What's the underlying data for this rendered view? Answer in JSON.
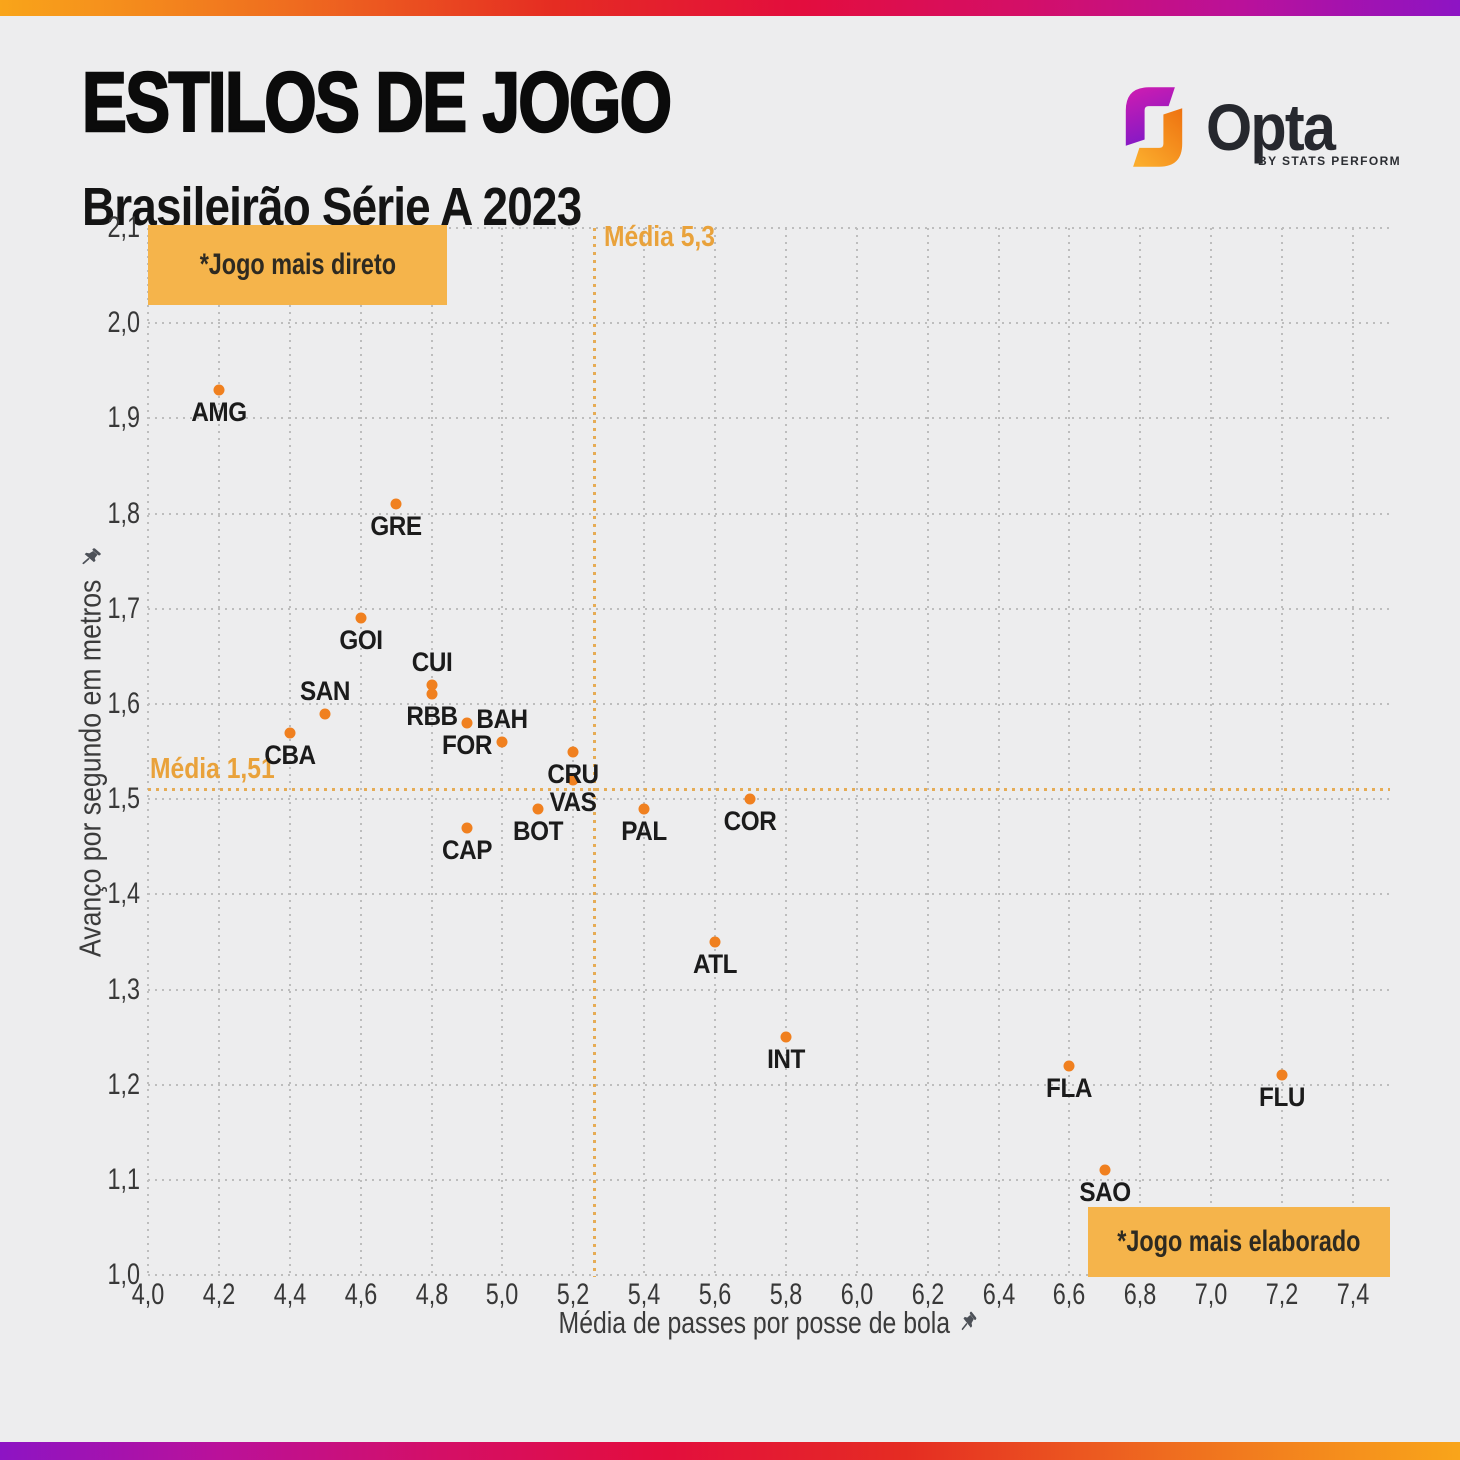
{
  "header": {
    "title": "ESTILOS DE JOGO",
    "subtitle": "Brasileirão Série A 2023"
  },
  "brand": {
    "name": "Opta",
    "byline": "BY STATS PERFORM"
  },
  "chart_data": {
    "type": "scatter",
    "title": "ESTILOS DE JOGO",
    "subtitle": "Brasileirão Série A 2023",
    "xlabel": "Média de passes por posse de bola",
    "ylabel": "Avanço por segundo em metros",
    "xlim": [
      4.0,
      7.5
    ],
    "ylim": [
      1.0,
      2.1
    ],
    "grid": true,
    "xticks": [
      "4,0",
      "4,2",
      "4,4",
      "4,6",
      "4,8",
      "5,0",
      "5,2",
      "5,4",
      "5,6",
      "5,8",
      "6,0",
      "6,2",
      "6,4",
      "6,6",
      "6,8",
      "7,0",
      "7,2",
      "7,4"
    ],
    "yticks": [
      "1,0",
      "1,1",
      "1,2",
      "1,3",
      "1,4",
      "1,5",
      "1,6",
      "1,7",
      "1,8",
      "1,9",
      "2,0",
      "2,1"
    ],
    "mean_x": {
      "label": "Média 5,3",
      "value": 5.26
    },
    "mean_y": {
      "label": "Média 1,51",
      "value": 1.51
    },
    "annotations": [
      {
        "text": "*Jogo mais direto",
        "corner": "top-left"
      },
      {
        "text": "*Jogo mais elaborado",
        "corner": "bottom-right"
      }
    ],
    "points": [
      {
        "label": "AMG",
        "x": 4.2,
        "y": 1.93,
        "label_pos": "below"
      },
      {
        "label": "GRE",
        "x": 4.7,
        "y": 1.81,
        "label_pos": "below"
      },
      {
        "label": "GOI",
        "x": 4.6,
        "y": 1.69,
        "label_pos": "below"
      },
      {
        "label": "CUI",
        "x": 4.8,
        "y": 1.62,
        "label_pos": "above"
      },
      {
        "label": "RBB",
        "x": 4.8,
        "y": 1.61,
        "label_pos": "below"
      },
      {
        "label": "SAN",
        "x": 4.5,
        "y": 1.59,
        "label_pos": "above"
      },
      {
        "label": "FOR",
        "x": 4.9,
        "y": 1.58,
        "label_pos": "below"
      },
      {
        "label": "CBA",
        "x": 4.4,
        "y": 1.57,
        "label_pos": "below"
      },
      {
        "label": "BAH",
        "x": 5.0,
        "y": 1.56,
        "label_pos": "above"
      },
      {
        "label": "CRU",
        "x": 5.2,
        "y": 1.55,
        "label_pos": "below"
      },
      {
        "label": "VAS",
        "x": 5.2,
        "y": 1.52,
        "label_pos": "below"
      },
      {
        "label": "COR",
        "x": 5.7,
        "y": 1.5,
        "label_pos": "below"
      },
      {
        "label": "BOT",
        "x": 5.1,
        "y": 1.49,
        "label_pos": "below"
      },
      {
        "label": "PAL",
        "x": 5.4,
        "y": 1.49,
        "label_pos": "below"
      },
      {
        "label": "CAP",
        "x": 4.9,
        "y": 1.47,
        "label_pos": "below"
      },
      {
        "label": "ATL",
        "x": 5.6,
        "y": 1.35,
        "label_pos": "below"
      },
      {
        "label": "INT",
        "x": 5.8,
        "y": 1.25,
        "label_pos": "below"
      },
      {
        "label": "FLA",
        "x": 6.6,
        "y": 1.22,
        "label_pos": "below"
      },
      {
        "label": "FLU",
        "x": 7.2,
        "y": 1.21,
        "label_pos": "below"
      },
      {
        "label": "SAO",
        "x": 6.7,
        "y": 1.11,
        "label_pos": "below"
      }
    ],
    "colors": {
      "dot": "#F0801F",
      "annotation_bg": "#F5B44B",
      "annotation_text": "#2E2A21",
      "mean_line": "#E6AC55",
      "mean_text": "#E9A23B",
      "grid": "#BDBDBD",
      "background": "#EDEDEE"
    },
    "legend": null
  }
}
